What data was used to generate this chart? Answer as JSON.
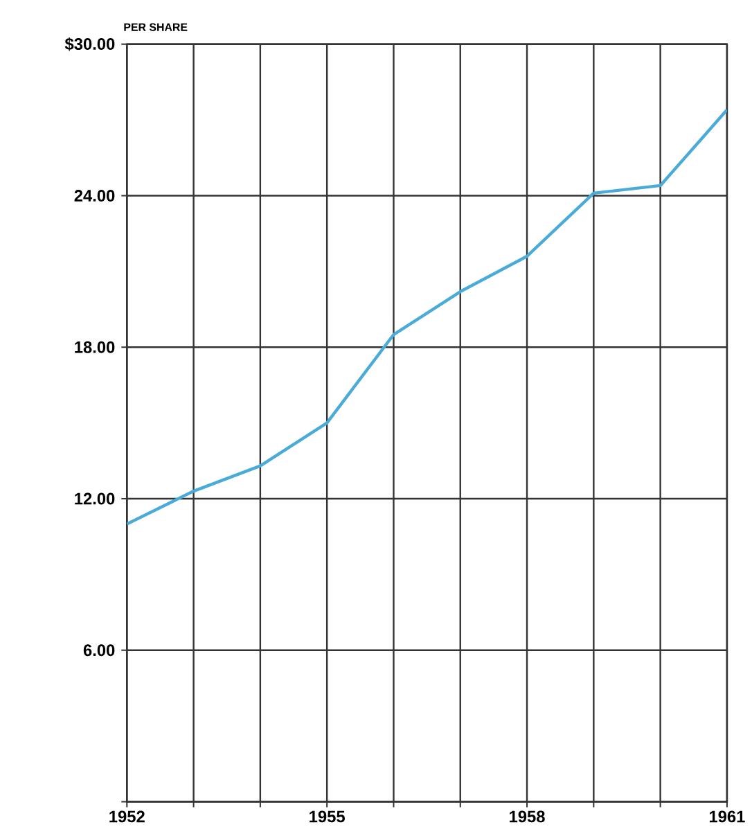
{
  "chart_data": {
    "type": "line",
    "ylabel": "PER SHARE",
    "x": [
      1952,
      1953,
      1954,
      1955,
      1956,
      1957,
      1958,
      1959,
      1960,
      1961
    ],
    "series": [
      {
        "color": "#4aabd8",
        "values": [
          11.0,
          12.3,
          13.3,
          15.0,
          18.5,
          20.2,
          21.6,
          24.1,
          24.4,
          27.4
        ]
      }
    ],
    "xlim": [
      1952,
      1961
    ],
    "xticks": [
      1952,
      {
        "value": 1953,
        "label": null
      },
      {
        "value": 1954,
        "label": null
      },
      1955,
      {
        "value": 1956,
        "label": null
      },
      {
        "value": 1957,
        "label": null
      },
      1958,
      {
        "value": 1959,
        "label": null
      },
      {
        "value": 1960,
        "label": null
      },
      1961
    ],
    "ylim": [
      0,
      30
    ],
    "yticks": [
      {
        "value": 0,
        "label": null
      },
      {
        "value": 6,
        "label": "6.00"
      },
      {
        "value": 12,
        "label": "12.00"
      },
      {
        "value": 18,
        "label": "18.00"
      },
      {
        "value": 24,
        "label": "24.00"
      },
      {
        "value": 30,
        "label": "$30.00"
      }
    ],
    "grid": true
  }
}
